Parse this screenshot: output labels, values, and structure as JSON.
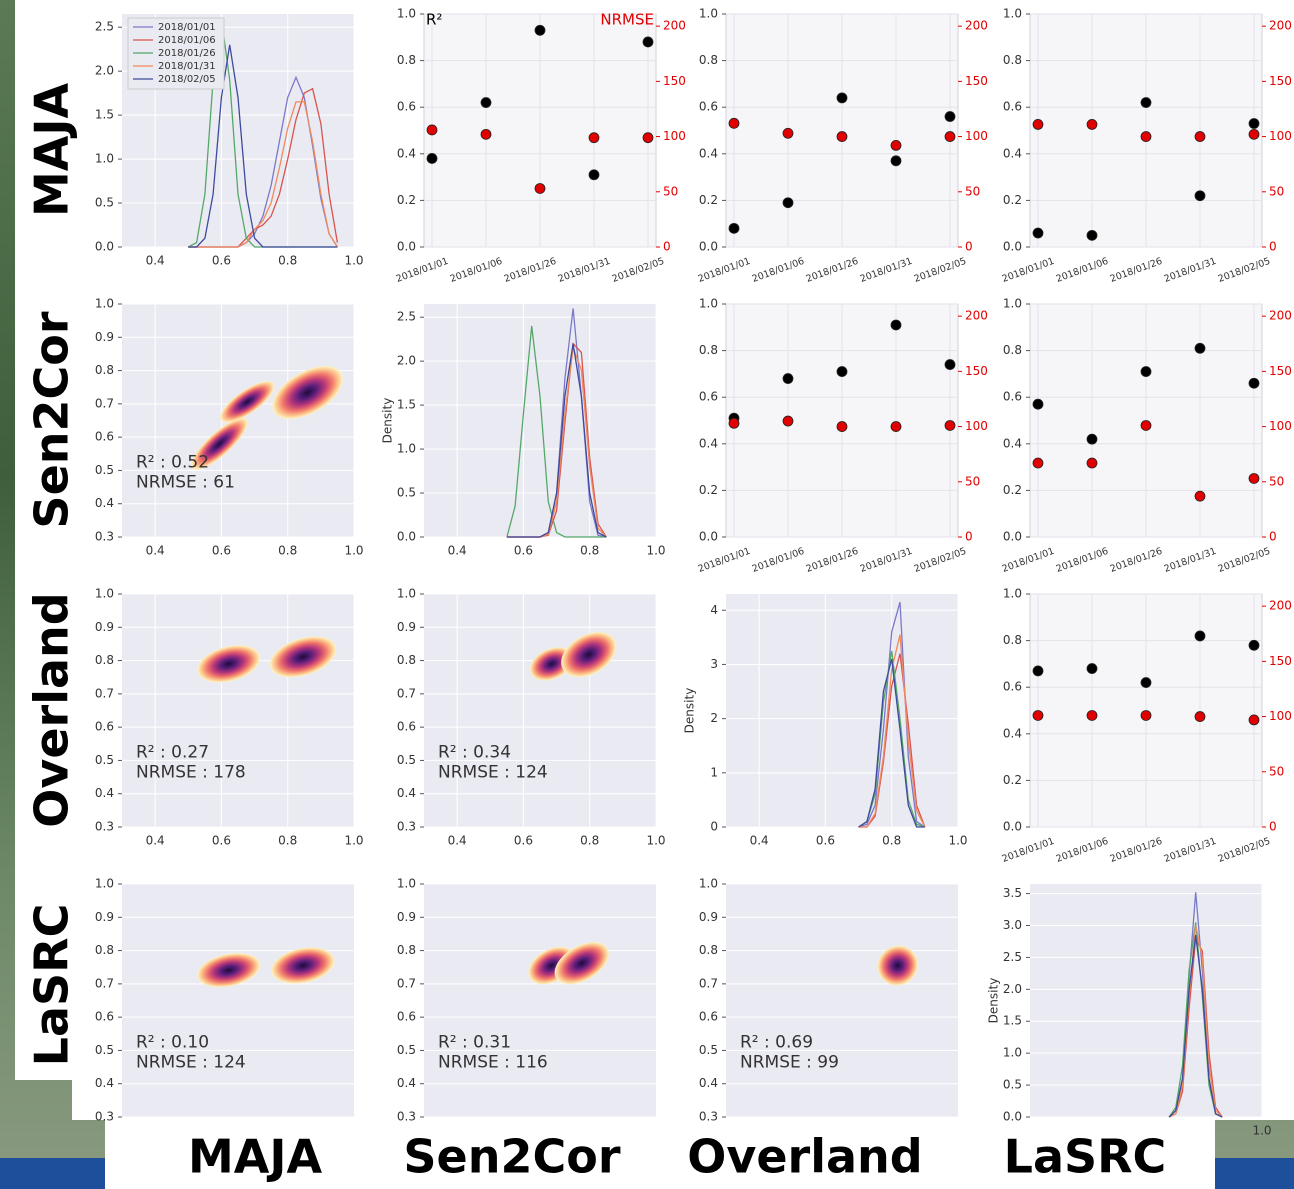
{
  "matrix": {
    "rows": [
      "MAJA",
      "Sen2Cor",
      "Overland",
      "LaSRC"
    ],
    "columns": [
      "MAJA",
      "Sen2Cor",
      "Overland",
      "LaSRC"
    ]
  },
  "chart_data": [
    {
      "type": "density",
      "xlim": [
        0.3,
        1.0
      ],
      "xticks": [
        0.4,
        0.6,
        0.8,
        {
          "value": 1,
          "label": "1.0"
        }
      ],
      "ylim": [
        0,
        2.65
      ],
      "yticks": [
        {
          "value": 0,
          "label": "0.0"
        },
        0.5,
        {
          "value": 1,
          "label": "1.0"
        },
        1.5,
        {
          "value": 2,
          "label": "2.0"
        },
        2.5
      ],
      "legend": "upper left",
      "x": [
        0.5,
        0.525,
        0.55,
        0.575,
        0.6,
        0.625,
        0.65,
        0.675,
        0.7,
        0.725,
        0.75,
        0.775,
        0.8,
        0.825,
        0.85,
        0.875,
        0.9,
        0.925,
        0.95
      ],
      "series": [
        {
          "name": "2018/01/01",
          "color": "#7a79c9",
          "values": [
            0,
            0,
            0,
            0,
            0,
            0,
            0,
            0.05,
            0.15,
            0.35,
            0.7,
            1.2,
            1.7,
            1.93,
            1.7,
            1.15,
            0.55,
            0.15,
            0
          ]
        },
        {
          "name": "2018/01/06",
          "color": "#d9534f",
          "values": [
            0,
            0,
            0,
            0,
            0,
            0,
            0,
            0.1,
            0.2,
            0.25,
            0.35,
            0.6,
            1.0,
            1.45,
            1.75,
            1.8,
            1.4,
            0.6,
            0.05
          ]
        },
        {
          "name": "2018/01/26",
          "color": "#55a868",
          "values": [
            0,
            0.05,
            0.6,
            1.9,
            2.6,
            1.9,
            0.6,
            0.1,
            0,
            0,
            0,
            0,
            0,
            0,
            0,
            0,
            0,
            0,
            0
          ]
        },
        {
          "name": "2018/01/31",
          "color": "#f08a5d",
          "values": [
            0,
            0,
            0,
            0,
            0,
            0,
            0,
            0.05,
            0.2,
            0.3,
            0.5,
            0.9,
            1.35,
            1.65,
            1.65,
            1.2,
            0.6,
            0.15,
            0
          ]
        },
        {
          "name": "2018/02/05",
          "color": "#3d4a9e",
          "values": [
            0,
            0,
            0.1,
            0.6,
            1.7,
            2.3,
            1.7,
            0.6,
            0.1,
            0,
            0,
            0,
            0,
            0,
            0,
            0,
            0,
            0,
            0
          ]
        }
      ]
    },
    {
      "type": "dual_scatter",
      "categories": [
        "2018/01/01",
        "2018/01/06",
        "2018/01/26",
        "2018/01/31",
        "2018/02/05"
      ],
      "ylim": [
        0,
        1.0
      ],
      "yticks": [
        {
          "value": 0,
          "label": "0.0"
        },
        0.2,
        0.4,
        0.6,
        0.8,
        {
          "value": 1,
          "label": "1.0"
        }
      ],
      "y2lim": [
        0,
        211
      ],
      "y2ticks": [
        0,
        50,
        100,
        150,
        200
      ],
      "series": [
        {
          "name": "R²",
          "color": "#000000",
          "values": [
            0.38,
            0.62,
            0.93,
            0.31,
            0.88
          ]
        },
        {
          "name": "NRMSE",
          "color": "#e00000",
          "axis": "y2",
          "values": [
            106,
            102,
            53,
            99,
            99
          ]
        }
      ]
    },
    {
      "type": "dual_scatter",
      "categories": [
        "2018/01/01",
        "2018/01/06",
        "2018/01/26",
        "2018/01/31",
        "2018/02/05"
      ],
      "ylim": [
        0,
        1.0
      ],
      "yticks": [
        {
          "value": 0,
          "label": "0.0"
        },
        0.2,
        0.4,
        0.6,
        0.8,
        {
          "value": 1,
          "label": "1.0"
        }
      ],
      "y2lim": [
        0,
        211
      ],
      "y2ticks": [
        0,
        50,
        100,
        150,
        200
      ],
      "series": [
        {
          "color": "#000000",
          "values": [
            0.08,
            0.19,
            0.64,
            0.37,
            0.56
          ]
        },
        {
          "color": "#e00000",
          "axis": "y2",
          "values": [
            112,
            103,
            100,
            92,
            100
          ]
        }
      ]
    },
    {
      "type": "dual_scatter",
      "categories": [
        "2018/01/01",
        "2018/01/06",
        "2018/01/26",
        "2018/01/31",
        "2018/02/05"
      ],
      "ylim": [
        0,
        1.0
      ],
      "yticks": [
        {
          "value": 0,
          "label": "0.0"
        },
        0.2,
        0.4,
        0.6,
        0.8,
        {
          "value": 1,
          "label": "1.0"
        }
      ],
      "y2lim": [
        0,
        211
      ],
      "y2ticks": [
        0,
        50,
        100,
        150,
        200
      ],
      "series": [
        {
          "color": "#000000",
          "values": [
            0.06,
            0.05,
            0.62,
            0.22,
            0.53
          ]
        },
        {
          "color": "#e00000",
          "axis": "y2",
          "values": [
            111,
            111,
            100,
            100,
            102
          ]
        }
      ]
    },
    {
      "type": "kde2d",
      "xlim": [
        0.3,
        1.0
      ],
      "xticks": [
        0.4,
        0.6,
        0.8,
        {
          "value": 1,
          "label": "1.0"
        }
      ],
      "ylim": [
        0.3,
        1.0
      ],
      "yticks": [
        0.3,
        0.4,
        0.5,
        0.6,
        0.7,
        0.8,
        0.9,
        {
          "value": 1,
          "label": "1.0"
        }
      ],
      "annotations": [
        "R² : 0.52",
        "NRMSE : 61"
      ]
    },
    {
      "type": "density",
      "xlim": [
        0.3,
        1.0
      ],
      "xticks": [
        0.4,
        0.6,
        0.8,
        {
          "value": 1,
          "label": "1.0"
        }
      ],
      "ylim": [
        0,
        2.65
      ],
      "yticks": [
        {
          "value": 0,
          "label": "0.0"
        },
        0.5,
        {
          "value": 1,
          "label": "1.0"
        },
        1.5,
        {
          "value": 2,
          "label": "2.0"
        },
        2.5
      ],
      "ylabel": "Density",
      "x": [
        0.55,
        0.575,
        0.6,
        0.625,
        0.65,
        0.675,
        0.7,
        0.725,
        0.75,
        0.775,
        0.8,
        0.825,
        0.85
      ],
      "series": [
        {
          "color": "#7a79c9",
          "values": [
            0,
            0,
            0,
            0,
            0,
            0.05,
            0.5,
            1.8,
            2.6,
            1.6,
            0.4,
            0.02,
            0
          ]
        },
        {
          "color": "#d9534f",
          "values": [
            0,
            0,
            0,
            0,
            0,
            0.02,
            0.3,
            1.3,
            2.2,
            2.1,
            0.9,
            0.15,
            0
          ]
        },
        {
          "color": "#55a868",
          "values": [
            0,
            0.35,
            1.4,
            2.4,
            1.6,
            0.4,
            0.05,
            0,
            0,
            0,
            0,
            0,
            0
          ]
        },
        {
          "color": "#f08a5d",
          "values": [
            0,
            0,
            0,
            0,
            0,
            0.03,
            0.4,
            1.4,
            2.15,
            1.9,
            0.8,
            0.1,
            0
          ]
        },
        {
          "color": "#3d4a9e",
          "values": [
            0,
            0,
            0,
            0,
            0,
            0.05,
            0.5,
            1.6,
            2.2,
            1.6,
            0.5,
            0.05,
            0
          ]
        }
      ]
    },
    {
      "type": "dual_scatter",
      "categories": [
        "2018/01/01",
        "2018/01/06",
        "2018/01/26",
        "2018/01/31",
        "2018/02/05"
      ],
      "ylim": [
        0,
        1.0
      ],
      "yticks": [
        {
          "value": 0,
          "label": "0.0"
        },
        0.2,
        0.4,
        0.6,
        0.8,
        {
          "value": 1,
          "label": "1.0"
        }
      ],
      "y2lim": [
        0,
        211
      ],
      "y2ticks": [
        0,
        50,
        100,
        150,
        200
      ],
      "series": [
        {
          "color": "#000000",
          "values": [
            0.51,
            0.68,
            0.71,
            0.91,
            0.74
          ]
        },
        {
          "color": "#e00000",
          "axis": "y2",
          "values": [
            103,
            105,
            100,
            100,
            101
          ]
        }
      ]
    },
    {
      "type": "dual_scatter",
      "categories": [
        "2018/01/01",
        "2018/01/06",
        "2018/01/26",
        "2018/01/31",
        "2018/02/05"
      ],
      "ylim": [
        0,
        1.0
      ],
      "yticks": [
        {
          "value": 0,
          "label": "0.0"
        },
        0.2,
        0.4,
        0.6,
        0.8,
        {
          "value": 1,
          "label": "1.0"
        }
      ],
      "y2lim": [
        0,
        211
      ],
      "y2ticks": [
        0,
        50,
        100,
        150,
        200
      ],
      "series": [
        {
          "color": "#000000",
          "values": [
            0.57,
            0.42,
            0.71,
            0.81,
            0.66
          ]
        },
        {
          "color": "#e00000",
          "axis": "y2",
          "values": [
            67,
            67,
            101,
            37,
            53
          ]
        }
      ]
    },
    {
      "type": "kde2d",
      "xlim": [
        0.3,
        1.0
      ],
      "xticks": [
        0.4,
        0.6,
        0.8,
        {
          "value": 1,
          "label": "1.0"
        }
      ],
      "ylim": [
        0.3,
        1.0
      ],
      "yticks": [
        0.3,
        0.4,
        0.5,
        0.6,
        0.7,
        0.8,
        0.9,
        {
          "value": 1,
          "label": "1.0"
        }
      ],
      "annotations": [
        "R² : 0.27",
        "NRMSE : 178"
      ]
    },
    {
      "type": "kde2d",
      "xlim": [
        0.3,
        1.0
      ],
      "xticks": [
        0.4,
        0.6,
        0.8,
        {
          "value": 1,
          "label": "1.0"
        }
      ],
      "ylim": [
        0.3,
        1.0
      ],
      "yticks": [
        0.3,
        0.4,
        0.5,
        0.6,
        0.7,
        0.8,
        0.9,
        {
          "value": 1,
          "label": "1.0"
        }
      ],
      "annotations": [
        "R² : 0.34",
        "NRMSE : 124"
      ]
    },
    {
      "type": "density",
      "xlim": [
        0.3,
        1.0
      ],
      "xticks": [
        0.4,
        0.6,
        0.8,
        {
          "value": 1,
          "label": "1.0"
        }
      ],
      "ylim": [
        0,
        4.3
      ],
      "yticks": [
        0,
        1,
        2,
        3,
        4
      ],
      "ylabel": "Density",
      "x": [
        0.7,
        0.725,
        0.75,
        0.775,
        0.8,
        0.825,
        0.85,
        0.875,
        0.9
      ],
      "series": [
        {
          "color": "#7a79c9",
          "values": [
            0,
            0.05,
            0.4,
            1.8,
            3.6,
            4.15,
            1.3,
            0.1,
            0
          ]
        },
        {
          "color": "#d9534f",
          "values": [
            0,
            0,
            0.2,
            1.2,
            2.6,
            3.2,
            1.9,
            0.4,
            0
          ]
        },
        {
          "color": "#55a868",
          "values": [
            0,
            0.1,
            0.6,
            2.3,
            3.25,
            2.0,
            0.5,
            0.05,
            0
          ]
        },
        {
          "color": "#f08a5d",
          "values": [
            0,
            0,
            0.25,
            1.3,
            2.9,
            3.55,
            1.6,
            0.3,
            0
          ]
        },
        {
          "color": "#3d4a9e",
          "values": [
            0,
            0.1,
            0.7,
            2.5,
            3.1,
            1.8,
            0.4,
            0,
            0
          ]
        }
      ]
    },
    {
      "type": "dual_scatter",
      "categories": [
        "2018/01/01",
        "2018/01/06",
        "2018/01/26",
        "2018/01/31",
        "2018/02/05"
      ],
      "ylim": [
        0,
        1.0
      ],
      "yticks": [
        {
          "value": 0,
          "label": "0.0"
        },
        0.2,
        0.4,
        0.6,
        0.8,
        {
          "value": 1,
          "label": "1.0"
        }
      ],
      "y2lim": [
        0,
        211
      ],
      "y2ticks": [
        0,
        50,
        100,
        150,
        200
      ],
      "series": [
        {
          "color": "#000000",
          "values": [
            0.67,
            0.68,
            0.62,
            0.82,
            0.78
          ]
        },
        {
          "color": "#e00000",
          "axis": "y2",
          "values": [
            101,
            101,
            101,
            100,
            97
          ]
        }
      ]
    },
    {
      "type": "kde2d",
      "ylim": [
        0.3,
        1.0
      ],
      "yticks": [
        0.3,
        0.4,
        0.5,
        0.6,
        0.7,
        0.8,
        0.9,
        {
          "value": 1,
          "label": "1.0"
        }
      ],
      "annotations": [
        "R² : 0.10",
        "NRMSE : 124"
      ]
    },
    {
      "type": "kde2d",
      "ylim": [
        0.3,
        1.0
      ],
      "yticks": [
        0.3,
        0.4,
        0.5,
        0.6,
        0.7,
        0.8,
        0.9,
        {
          "value": 1,
          "label": "1.0"
        }
      ],
      "annotations": [
        "R² : 0.31",
        "NRMSE : 116"
      ]
    },
    {
      "type": "kde2d",
      "ylim": [
        0.3,
        1.0
      ],
      "yticks": [
        0.3,
        0.4,
        0.5,
        0.6,
        0.7,
        0.8,
        0.9,
        {
          "value": 1,
          "label": "1.0"
        }
      ],
      "annotations": [
        "R² : 0.69",
        "NRMSE : 99"
      ]
    },
    {
      "type": "density",
      "xlim": [
        0.3,
        1.0
      ],
      "xticks": [
        {
          "value": 1,
          "label": "1.0"
        }
      ],
      "ylim": [
        0,
        3.65
      ],
      "yticks": [
        {
          "value": 0,
          "label": "0.0"
        },
        0.5,
        {
          "value": 1,
          "label": "1.0"
        },
        1.5,
        {
          "value": 2,
          "label": "2.0"
        },
        2.5,
        {
          "value": 3,
          "label": "3.0"
        },
        3.5
      ],
      "ylabel": "Density",
      "x": [
        0.72,
        0.74,
        0.76,
        0.78,
        0.8,
        0.82,
        0.84,
        0.86,
        0.88
      ],
      "series": [
        {
          "color": "#7a79c9",
          "values": [
            0,
            0.1,
            0.6,
            2.2,
            3.52,
            2.3,
            0.6,
            0.05,
            0
          ]
        },
        {
          "color": "#d9534f",
          "values": [
            0,
            0.05,
            0.4,
            1.7,
            2.8,
            2.6,
            1.0,
            0.15,
            0
          ]
        },
        {
          "color": "#55a868",
          "values": [
            0,
            0.15,
            0.8,
            2.3,
            3.05,
            1.9,
            0.5,
            0.05,
            0
          ]
        },
        {
          "color": "#f08a5d",
          "values": [
            0,
            0.05,
            0.5,
            1.9,
            3.0,
            2.5,
            0.8,
            0.1,
            0
          ]
        },
        {
          "color": "#3d4a9e",
          "values": [
            0,
            0.1,
            0.6,
            2.0,
            2.85,
            2.0,
            0.6,
            0.05,
            0
          ]
        }
      ]
    }
  ]
}
